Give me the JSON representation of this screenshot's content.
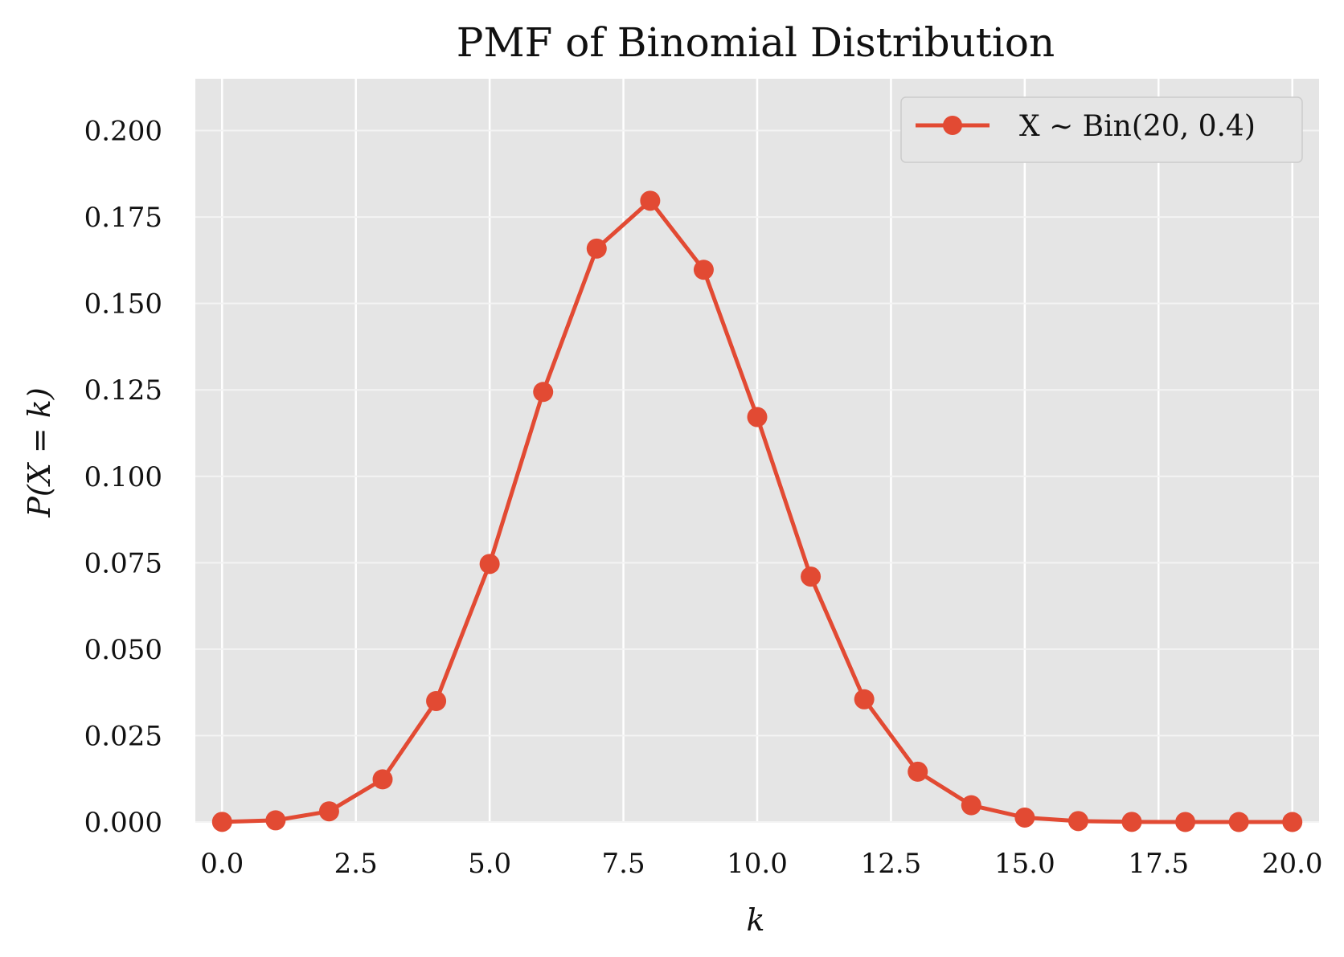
{
  "chart_data": {
    "type": "line",
    "title": "PMF of Binomial Distribution",
    "xlabel": "k",
    "ylabel": "P(X = k)",
    "xlim": [
      -0.5,
      20.5
    ],
    "ylim": [
      0,
      0.215
    ],
    "xticks": [
      0.0,
      2.5,
      5.0,
      7.5,
      10.0,
      12.5,
      15.0,
      17.5,
      20.0
    ],
    "xtick_labels": [
      "0.0",
      "2.5",
      "5.0",
      "7.5",
      "10.0",
      "12.5",
      "15.0",
      "17.5",
      "20.0"
    ],
    "yticks": [
      0.0,
      0.025,
      0.05,
      0.075,
      0.1,
      0.125,
      0.15,
      0.175,
      0.2
    ],
    "ytick_labels": [
      "0.000",
      "0.025",
      "0.050",
      "0.075",
      "0.100",
      "0.125",
      "0.150",
      "0.175",
      "0.200"
    ],
    "grid": true,
    "legend_position": "top-right",
    "series": [
      {
        "name": "X ∼ Bin(20, 0.4)",
        "color": "#E24A33",
        "marker": "circle",
        "x": [
          0,
          1,
          2,
          3,
          4,
          5,
          6,
          7,
          8,
          9,
          10,
          11,
          12,
          13,
          14,
          15,
          16,
          17,
          18,
          19,
          20
        ],
        "values": [
          4e-05,
          0.00049,
          0.00309,
          0.01235,
          0.03499,
          0.07465,
          0.12441,
          0.16588,
          0.17971,
          0.15974,
          0.11714,
          0.07099,
          0.0355,
          0.01456,
          0.00485,
          0.00129,
          0.00027,
          4e-05,
          5e-06,
          4e-07,
          1e-08
        ]
      }
    ]
  }
}
